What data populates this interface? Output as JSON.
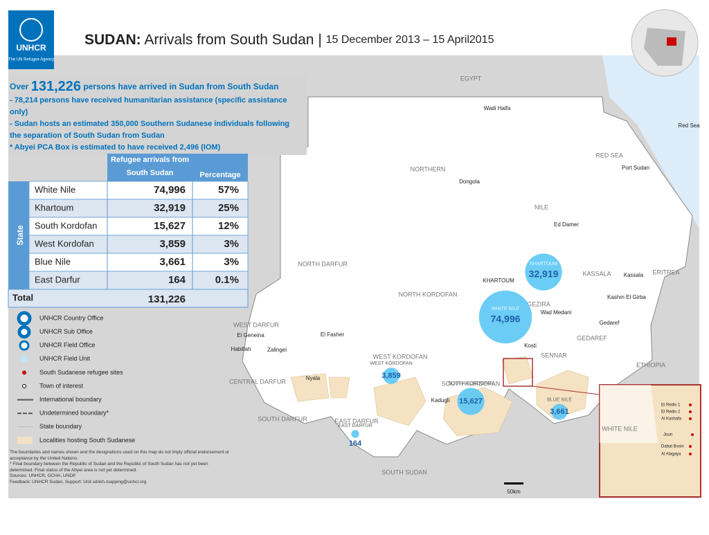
{
  "logo": {
    "name": "UNHCR",
    "sub": "The UN Refugee Agency"
  },
  "header": {
    "title_bold": "SUDAN:",
    "title": "Arrivals from South Sudan",
    "separator": "|",
    "dates": "15 December 2013 – 15 April2015"
  },
  "summary": {
    "prefix": "Over",
    "total": "131,226",
    "suffix": "persons have arrived in Sudan from South Sudan",
    "notes": [
      "- 78,214 persons have received humanitarian assistance (specific assistance only)",
      "- Sudan hosts an estimated 350,000 Southern Sudanese individuals following the separation of South Sudan from Sudan",
      "* Abyei PCA Box is estimated to have received 2,496 (IOM)"
    ]
  },
  "table": {
    "columns": [
      "Refugee arrivals from South Sudan",
      "Percentage"
    ],
    "group": "State",
    "rows": [
      [
        "White Nile",
        "74,996",
        "57%"
      ],
      [
        "Khartoum",
        "32,919",
        "25%"
      ],
      [
        "South Kordofan",
        "15,627",
        "12%"
      ],
      [
        "West Kordofan",
        "3,859",
        "3%"
      ],
      [
        "Blue Nile",
        "3,661",
        "3%"
      ],
      [
        "East Darfur",
        "164",
        "0.1%"
      ]
    ],
    "total": [
      "Total",
      "131,226"
    ]
  },
  "legend": [
    "UNHCR Country Office",
    "UNHCR Sub Office",
    "UNHCR Field Office",
    "UNHCR Field Unit",
    "South Sudanese refugee sites",
    "Town of interest",
    "International boundary",
    "Undetermined boundary*",
    "State boundary",
    "Localities hosting South Sudanese"
  ],
  "footnote": [
    "The boundaries and names shown and the designations used on this map do not imply official endorsement or acceptance by the United Nations.",
    "* Final boundary between the Republic of Sudan and the Republic of South Sudan has not yet been determined. Final status of the Abyei area is not yet determined.",
    "Sources: UNHCR, OCHA, UNDP",
    "Feedback: UNHCR Sudan, Support: Unit sdnkh.mapping@unhcr.org"
  ],
  "map_labels": [
    "EGYPT",
    "Wadi Halfa",
    "NORTHERN",
    "Dongola",
    "RED SEA",
    "Port Sudan",
    "NILE",
    "Ed Damer",
    "NORTH DARFUR",
    "NORTH KORDOFAN",
    "KHARTOUM",
    "KASSALA",
    "Kassala",
    "Kashm El Girba",
    "ERITREA",
    "GEZIRA",
    "Wad Medani",
    "Gedaref",
    "GEDAREF",
    "SENNAR",
    "WEST DARFUR",
    "El Geneina",
    "Zalingei",
    "El Fasher",
    "Habillah",
    "CENTRAL DARFUR",
    "Nyala",
    "SOUTH DARFUR",
    "EAST DARFUR",
    "WEST KORDOFAN",
    "SOUTH KORDOFAN",
    "Kosti",
    "Kadugli",
    "ETHIOPIA",
    "SOUTH SUDAN",
    "Red Sea",
    "50km"
  ],
  "bubbles": {
    "names": [
      "WHITE NILE",
      "KHARTOUM",
      "SOUTH KORDOFAN",
      "WEST KORDOFAN",
      "BLUE NILE",
      "EAST DARFUR"
    ],
    "values": [
      74996,
      32919,
      15627,
      3859,
      3661,
      164
    ],
    "value_labels": [
      "74,996",
      "32,919",
      "15,627",
      "3,859",
      "3,661",
      "164"
    ]
  },
  "inset_labels": [
    "WHITE NILE",
    "El Redis 1",
    "El Redis 2",
    "Al Kashafa",
    "Jouri",
    "Dabat Bosin",
    "Al Alagaya"
  ]
}
